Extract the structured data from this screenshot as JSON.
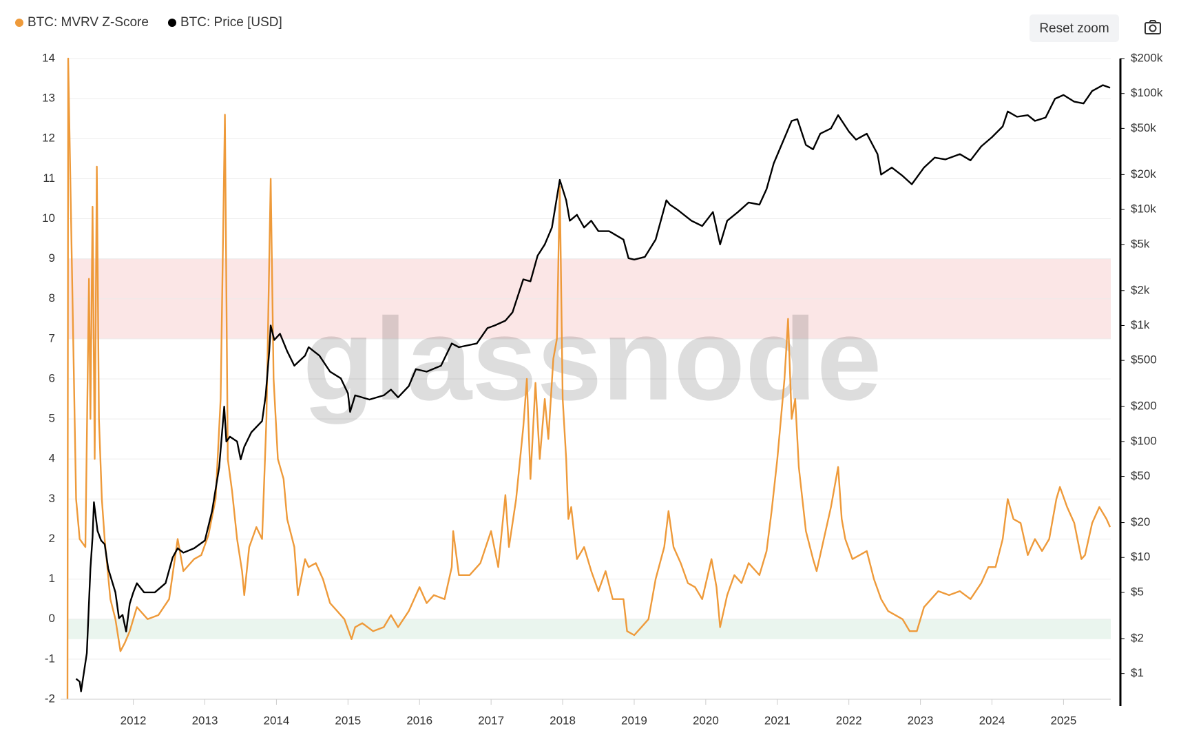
{
  "chart_data": {
    "type": "line",
    "watermark": "glassnode",
    "reset_button": "Reset zoom",
    "xlim": [
      2011.08,
      2025.66
    ],
    "xticks": [
      2012,
      2013,
      2014,
      2015,
      2016,
      2017,
      2018,
      2019,
      2020,
      2021,
      2022,
      2023,
      2024,
      2025
    ],
    "ylim": [
      -2,
      14
    ],
    "yticks": [
      -2,
      -1,
      0,
      1,
      2,
      3,
      4,
      5,
      6,
      7,
      8,
      9,
      10,
      11,
      12,
      13,
      14
    ],
    "y2lim": [
      0.6,
      200000
    ],
    "y2scale": "log",
    "y2ticks": [
      {
        "value": 1,
        "label": "$1"
      },
      {
        "value": 2,
        "label": "$2"
      },
      {
        "value": 5,
        "label": "$5"
      },
      {
        "value": 10,
        "label": "$10"
      },
      {
        "value": 20,
        "label": "$20"
      },
      {
        "value": 50,
        "label": "$50"
      },
      {
        "value": 100,
        "label": "$100"
      },
      {
        "value": 200,
        "label": "$200"
      },
      {
        "value": 500,
        "label": "$500"
      },
      {
        "value": 1000,
        "label": "$1k"
      },
      {
        "value": 2000,
        "label": "$2k"
      },
      {
        "value": 5000,
        "label": "$5k"
      },
      {
        "value": 10000,
        "label": "$10k"
      },
      {
        "value": 20000,
        "label": "$20k"
      },
      {
        "value": 50000,
        "label": "$50k"
      },
      {
        "value": 100000,
        "label": "$100k"
      },
      {
        "value": 200000,
        "label": "$200k"
      }
    ],
    "grid": true,
    "legend": "top-left",
    "zones": [
      {
        "from": 7,
        "to": 9,
        "color": "#fbe6e6"
      },
      {
        "from": -0.5,
        "to": 0,
        "color": "#eaf5ee"
      }
    ],
    "series": [
      {
        "name": "BTC: MVRV Z-Score",
        "color": "#ee9a3a",
        "axis": "y",
        "x": [
          2011.08,
          2011.09,
          2011.2,
          2011.25,
          2011.33,
          2011.38,
          2011.4,
          2011.43,
          2011.46,
          2011.49,
          2011.52,
          2011.56,
          2011.6,
          2011.68,
          2011.75,
          2011.82,
          2011.88,
          2011.95,
          2012.05,
          2012.2,
          2012.35,
          2012.5,
          2012.62,
          2012.7,
          2012.85,
          2012.95,
          2013.05,
          2013.15,
          2013.22,
          2013.28,
          2013.32,
          2013.38,
          2013.45,
          2013.52,
          2013.55,
          2013.62,
          2013.72,
          2013.8,
          2013.86,
          2013.92,
          2013.96,
          2014.02,
          2014.1,
          2014.15,
          2014.25,
          2014.3,
          2014.4,
          2014.45,
          2014.55,
          2014.65,
          2014.75,
          2014.85,
          2014.95,
          2015.05,
          2015.1,
          2015.2,
          2015.35,
          2015.5,
          2015.6,
          2015.7,
          2015.85,
          2015.95,
          2016.0,
          2016.1,
          2016.2,
          2016.35,
          2016.45,
          2016.47,
          2016.55,
          2016.7,
          2016.85,
          2017.0,
          2017.1,
          2017.2,
          2017.25,
          2017.35,
          2017.45,
          2017.5,
          2017.55,
          2017.62,
          2017.68,
          2017.75,
          2017.8,
          2017.87,
          2017.92,
          2017.96,
          2018.0,
          2018.05,
          2018.08,
          2018.12,
          2018.2,
          2018.3,
          2018.4,
          2018.5,
          2018.6,
          2018.7,
          2018.85,
          2018.9,
          2019.0,
          2019.1,
          2019.2,
          2019.3,
          2019.42,
          2019.48,
          2019.55,
          2019.65,
          2019.75,
          2019.85,
          2019.95,
          2020.08,
          2020.15,
          2020.2,
          2020.3,
          2020.4,
          2020.5,
          2020.6,
          2020.75,
          2020.85,
          2020.92,
          2021.0,
          2021.05,
          2021.1,
          2021.15,
          2021.2,
          2021.25,
          2021.3,
          2021.4,
          2021.5,
          2021.55,
          2021.65,
          2021.75,
          2021.85,
          2021.9,
          2021.95,
          2022.05,
          2022.15,
          2022.25,
          2022.35,
          2022.45,
          2022.55,
          2022.65,
          2022.75,
          2022.85,
          2022.95,
          2023.05,
          2023.15,
          2023.25,
          2023.4,
          2023.55,
          2023.7,
          2023.85,
          2023.95,
          2024.05,
          2024.15,
          2024.22,
          2024.3,
          2024.4,
          2024.5,
          2024.6,
          2024.7,
          2024.8,
          2024.9,
          2024.95,
          2025.05,
          2025.15,
          2025.25,
          2025.3,
          2025.4,
          2025.5,
          2025.6,
          2025.65
        ],
        "values": [
          -2,
          14,
          3.0,
          2.0,
          1.8,
          8.5,
          5,
          10.3,
          4,
          11.3,
          5,
          3,
          2,
          0.5,
          0,
          -0.8,
          -0.6,
          -0.3,
          0.3,
          0.0,
          0.1,
          0.5,
          2.0,
          1.2,
          1.5,
          1.6,
          2.1,
          3.0,
          5.5,
          12.6,
          4,
          3.2,
          2.0,
          1.2,
          0.6,
          1.8,
          2.3,
          2.0,
          5.0,
          11.0,
          6,
          4,
          3.5,
          2.5,
          1.8,
          0.6,
          1.5,
          1.3,
          1.4,
          1.0,
          0.4,
          0.2,
          0.0,
          -0.5,
          -0.2,
          -0.1,
          -0.3,
          -0.2,
          0.1,
          -0.2,
          0.2,
          0.6,
          0.8,
          0.4,
          0.6,
          0.5,
          1.3,
          2.2,
          1.1,
          1.1,
          1.4,
          2.2,
          1.3,
          3.1,
          1.8,
          3.0,
          4.8,
          6.0,
          3.5,
          5.9,
          4.0,
          5.5,
          4.5,
          6.5,
          7.0,
          10.8,
          5.5,
          4.0,
          2.5,
          2.8,
          1.5,
          1.8,
          1.2,
          0.7,
          1.2,
          0.5,
          0.5,
          -0.3,
          -0.4,
          -0.2,
          0.0,
          1.0,
          1.8,
          2.7,
          1.8,
          1.4,
          0.9,
          0.8,
          0.5,
          1.5,
          0.8,
          -0.2,
          0.6,
          1.1,
          0.9,
          1.4,
          1.1,
          1.7,
          2.7,
          4.0,
          5.0,
          6.0,
          7.5,
          5.0,
          5.5,
          3.8,
          2.2,
          1.5,
          1.2,
          2.0,
          2.8,
          3.8,
          2.5,
          2.0,
          1.5,
          1.6,
          1.7,
          1.0,
          0.5,
          0.2,
          0.1,
          0.0,
          -0.3,
          -0.3,
          0.3,
          0.5,
          0.7,
          0.6,
          0.7,
          0.5,
          0.9,
          1.3,
          1.3,
          2.0,
          3.0,
          2.5,
          2.4,
          1.6,
          2.0,
          1.7,
          2.0,
          3.0,
          3.3,
          2.8,
          2.4,
          1.5,
          1.6,
          2.4,
          2.8,
          2.5,
          2.3
        ]
      },
      {
        "name": "BTC: Price [USD]",
        "color": "#000000",
        "axis": "y2",
        "x": [
          2011.2,
          2011.25,
          2011.27,
          2011.35,
          2011.4,
          2011.43,
          2011.45,
          2011.5,
          2011.55,
          2011.6,
          2011.65,
          2011.75,
          2011.8,
          2011.85,
          2011.9,
          2011.95,
          2012.0,
          2012.05,
          2012.15,
          2012.3,
          2012.45,
          2012.55,
          2012.62,
          2012.7,
          2012.85,
          2013.0,
          2013.1,
          2013.2,
          2013.27,
          2013.3,
          2013.35,
          2013.45,
          2013.5,
          2013.55,
          2013.65,
          2013.8,
          2013.85,
          2013.9,
          2013.92,
          2013.97,
          2014.05,
          2014.15,
          2014.25,
          2014.4,
          2014.45,
          2014.6,
          2014.75,
          2014.9,
          2015.0,
          2015.03,
          2015.1,
          2015.3,
          2015.5,
          2015.6,
          2015.7,
          2015.85,
          2015.95,
          2016.1,
          2016.3,
          2016.45,
          2016.55,
          2016.8,
          2016.95,
          2017.05,
          2017.2,
          2017.3,
          2017.45,
          2017.55,
          2017.65,
          2017.75,
          2017.85,
          2017.96,
          2018.05,
          2018.1,
          2018.2,
          2018.3,
          2018.4,
          2018.5,
          2018.65,
          2018.85,
          2018.92,
          2019.0,
          2019.15,
          2019.3,
          2019.45,
          2019.5,
          2019.6,
          2019.8,
          2019.95,
          2020.1,
          2020.2,
          2020.3,
          2020.45,
          2020.6,
          2020.75,
          2020.85,
          2020.95,
          2021.05,
          2021.2,
          2021.28,
          2021.4,
          2021.5,
          2021.6,
          2021.75,
          2021.85,
          2022.0,
          2022.1,
          2022.25,
          2022.4,
          2022.45,
          2022.6,
          2022.75,
          2022.88,
          2023.05,
          2023.2,
          2023.35,
          2023.55,
          2023.7,
          2023.85,
          2024.0,
          2024.15,
          2024.22,
          2024.35,
          2024.5,
          2024.6,
          2024.75,
          2024.88,
          2025.0,
          2025.15,
          2025.28,
          2025.4,
          2025.55,
          2025.65
        ],
        "values": [
          0.9,
          0.85,
          0.7,
          1.5,
          8,
          15,
          30,
          17,
          14,
          13,
          8,
          5,
          3,
          3.2,
          2.3,
          4,
          5,
          6,
          5,
          5,
          6,
          10,
          12,
          11,
          12,
          14,
          25,
          60,
          200,
          100,
          110,
          100,
          70,
          90,
          120,
          150,
          250,
          600,
          1000,
          750,
          850,
          600,
          450,
          550,
          650,
          550,
          400,
          350,
          260,
          180,
          250,
          230,
          250,
          280,
          240,
          300,
          420,
          400,
          450,
          700,
          650,
          700,
          950,
          1000,
          1100,
          1300,
          2500,
          2400,
          4000,
          5000,
          7000,
          18000,
          12000,
          8000,
          9000,
          7000,
          8000,
          6500,
          6500,
          5500,
          3800,
          3700,
          3900,
          5500,
          12000,
          11000,
          10000,
          8000,
          7200,
          9500,
          5000,
          8000,
          9500,
          11500,
          11000,
          15000,
          25000,
          35000,
          58000,
          60000,
          36000,
          33000,
          45000,
          50000,
          65000,
          47000,
          40000,
          45000,
          30000,
          20000,
          23000,
          19500,
          16500,
          23000,
          28000,
          27000,
          30000,
          26500,
          35000,
          42000,
          52000,
          70000,
          63000,
          65000,
          58000,
          62000,
          90000,
          97000,
          85000,
          82000,
          105000,
          118000,
          112000
        ]
      }
    ]
  }
}
